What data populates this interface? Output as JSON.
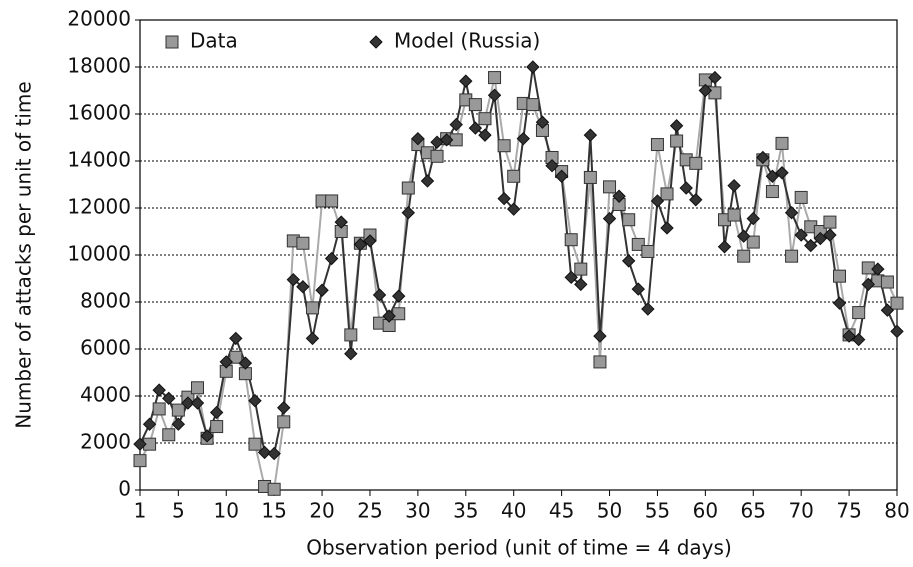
{
  "chart_data": {
    "type": "line",
    "xlabel": "Observation period (unit of time = 4 days)",
    "ylabel": "Number of attacks per unit of time",
    "x": [
      1,
      2,
      3,
      4,
      5,
      6,
      7,
      8,
      9,
      10,
      11,
      12,
      13,
      14,
      15,
      16,
      17,
      18,
      19,
      20,
      21,
      22,
      23,
      24,
      25,
      26,
      27,
      28,
      29,
      30,
      31,
      32,
      33,
      34,
      35,
      36,
      37,
      38,
      39,
      40,
      41,
      42,
      43,
      44,
      45,
      46,
      47,
      48,
      49,
      50,
      51,
      52,
      53,
      54,
      55,
      56,
      57,
      58,
      59,
      60,
      61,
      62,
      63,
      64,
      65,
      66,
      67,
      68,
      69,
      70,
      71,
      72,
      73,
      74,
      75,
      76,
      77,
      78,
      79,
      80
    ],
    "series": [
      {
        "name": "Data",
        "color": "#999999",
        "line_color": "#aaaaaa",
        "marker": "square",
        "values": [
          1250,
          1950,
          3450,
          2350,
          3400,
          3950,
          4350,
          2200,
          2700,
          5050,
          5650,
          4950,
          1950,
          150,
          30,
          2900,
          10600,
          10500,
          7750,
          12300,
          12300,
          11000,
          6600,
          10500,
          10850,
          7100,
          7000,
          7500,
          12850,
          14700,
          14350,
          14200,
          14950,
          14900,
          16600,
          16400,
          15800,
          17550,
          14650,
          13350,
          16450,
          16400,
          15300,
          14150,
          13550,
          10650,
          9400,
          13300,
          5450,
          12900,
          12150,
          11500,
          10450,
          10150,
          14700,
          12600,
          14850,
          14050,
          13900,
          17450,
          16900,
          11500,
          11700,
          9950,
          10550,
          14050,
          12700,
          14750,
          9950,
          12450,
          11200,
          11000,
          11400,
          9100,
          6600,
          7550,
          9450,
          8900,
          8850,
          7950
        ]
      },
      {
        "name": "Model (Russia)",
        "color": "#333333",
        "line_color": "#333333",
        "marker": "diamond",
        "values": [
          1950,
          2800,
          4250,
          3900,
          2800,
          3700,
          3700,
          2300,
          3300,
          5450,
          6450,
          5400,
          3800,
          1600,
          1550,
          3500,
          8950,
          8650,
          6450,
          8500,
          9850,
          11400,
          5800,
          10450,
          10600,
          8300,
          7400,
          8250,
          11800,
          14950,
          13150,
          14800,
          14900,
          15550,
          17400,
          15400,
          15100,
          16800,
          12400,
          11950,
          14950,
          18000,
          15650,
          13800,
          13350,
          9050,
          8750,
          15100,
          6550,
          11550,
          12500,
          9750,
          8550,
          7700,
          12300,
          11150,
          15500,
          12850,
          12350,
          17000,
          17550,
          10350,
          12950,
          10800,
          11550,
          14150,
          13350,
          13500,
          11800,
          10850,
          10400,
          10700,
          10850,
          7950,
          6550,
          6400,
          8750,
          9400,
          7650,
          6750
        ]
      }
    ],
    "xlim": [
      1,
      80
    ],
    "xticks": [
      1,
      5,
      10,
      15,
      20,
      25,
      30,
      35,
      40,
      45,
      50,
      55,
      60,
      65,
      70,
      75,
      80
    ],
    "ylim": [
      0,
      20000
    ],
    "yticks": [
      0,
      2000,
      4000,
      6000,
      8000,
      10000,
      12000,
      14000,
      16000,
      18000,
      20000
    ],
    "grid": true,
    "legend": "top-left"
  }
}
